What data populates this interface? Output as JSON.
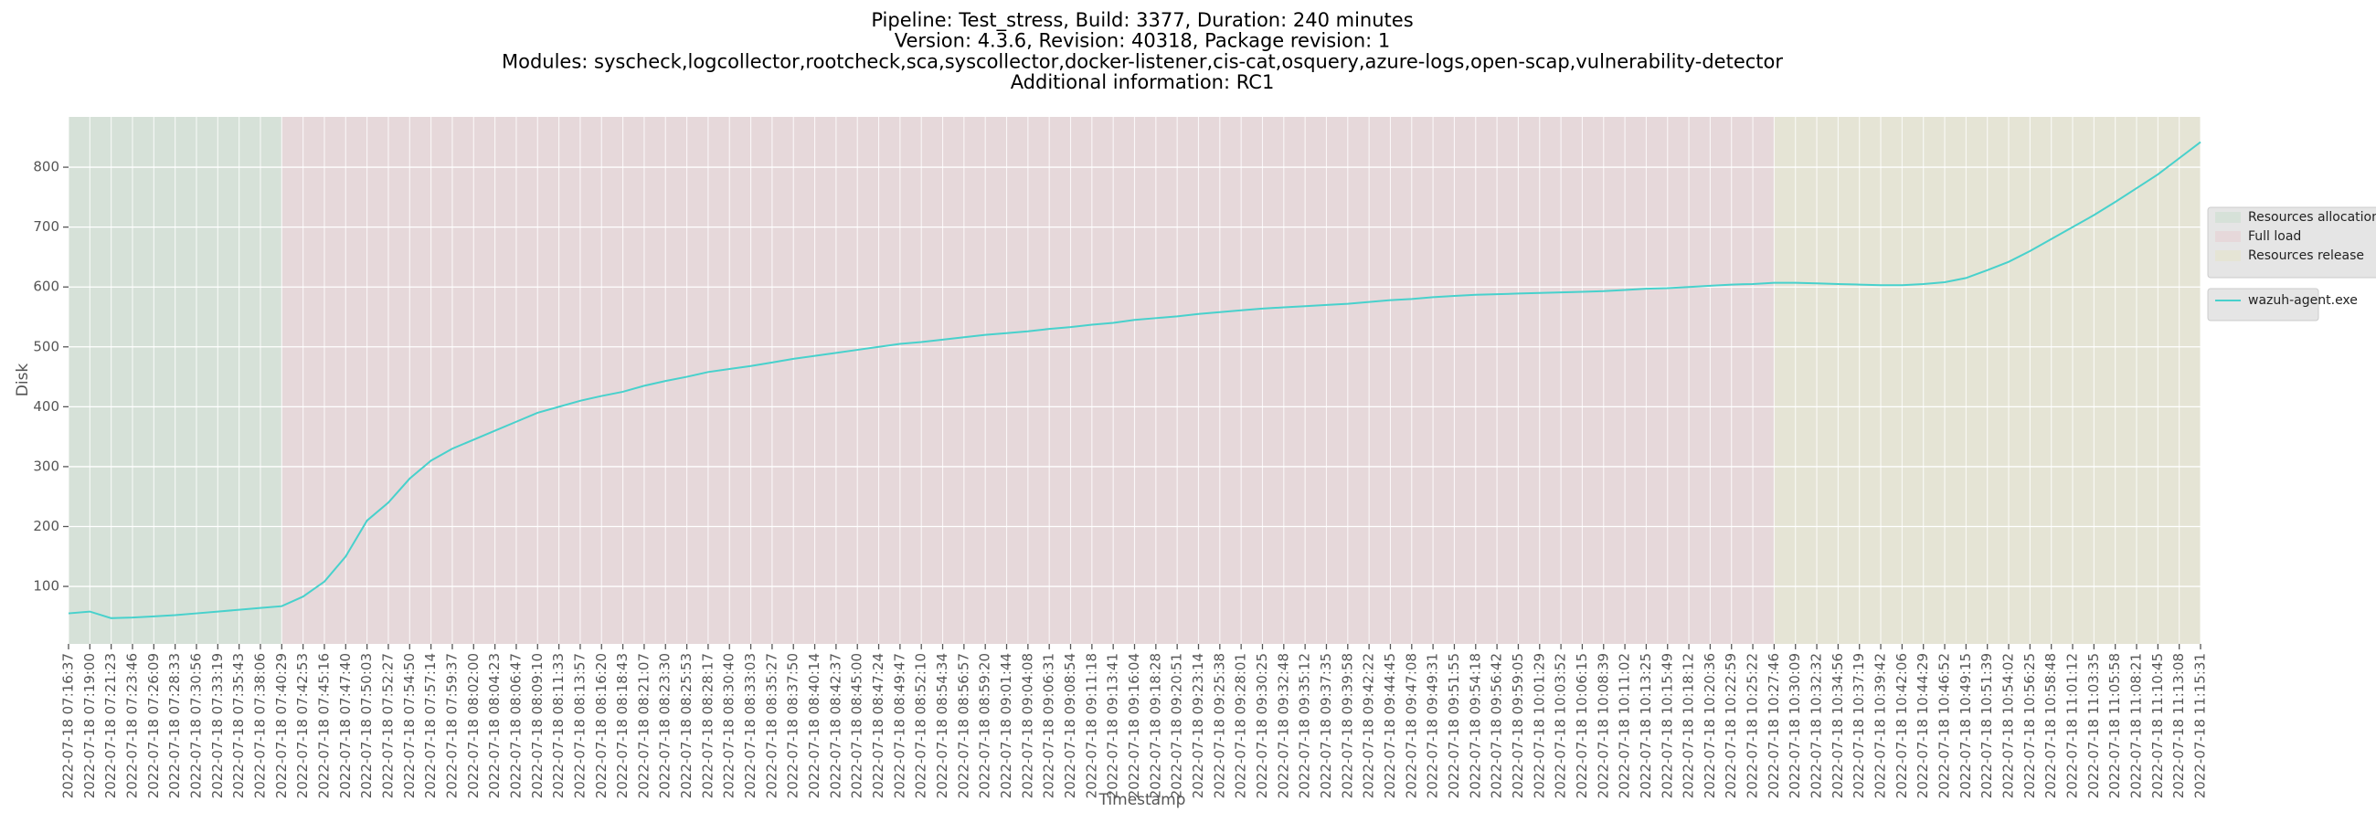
{
  "chart_data": {
    "type": "line",
    "title": [
      "Pipeline: Test_stress, Build: 3377, Duration: 240 minutes",
      "Version: 4.3.6, Revision: 40318, Package revision: 1",
      "Modules: syscheck,logcollector,rootcheck,sca,syscollector,docker-listener,cis-cat,osquery,azure-logs,open-scap,vulnerability-detector",
      "Additional information: RC1"
    ],
    "xlabel": "Timestamp",
    "ylabel": "Disk",
    "categories": [
      "2022-07-18 07:16:37",
      "2022-07-18 07:19:00",
      "2022-07-18 07:21:23",
      "2022-07-18 07:23:46",
      "2022-07-18 07:26:09",
      "2022-07-18 07:28:33",
      "2022-07-18 07:30:56",
      "2022-07-18 07:33:19",
      "2022-07-18 07:35:43",
      "2022-07-18 07:38:06",
      "2022-07-18 07:40:29",
      "2022-07-18 07:42:53",
      "2022-07-18 07:45:16",
      "2022-07-18 07:47:40",
      "2022-07-18 07:50:03",
      "2022-07-18 07:52:27",
      "2022-07-18 07:54:50",
      "2022-07-18 07:57:14",
      "2022-07-18 07:59:37",
      "2022-07-18 08:02:00",
      "2022-07-18 08:04:23",
      "2022-07-18 08:06:47",
      "2022-07-18 08:09:10",
      "2022-07-18 08:11:33",
      "2022-07-18 08:13:57",
      "2022-07-18 08:16:20",
      "2022-07-18 08:18:43",
      "2022-07-18 08:21:07",
      "2022-07-18 08:23:30",
      "2022-07-18 08:25:53",
      "2022-07-18 08:28:17",
      "2022-07-18 08:30:40",
      "2022-07-18 08:33:03",
      "2022-07-18 08:35:27",
      "2022-07-18 08:37:50",
      "2022-07-18 08:40:14",
      "2022-07-18 08:42:37",
      "2022-07-18 08:45:00",
      "2022-07-18 08:47:24",
      "2022-07-18 08:49:47",
      "2022-07-18 08:52:10",
      "2022-07-18 08:54:34",
      "2022-07-18 08:56:57",
      "2022-07-18 08:59:20",
      "2022-07-18 09:01:44",
      "2022-07-18 09:04:08",
      "2022-07-18 09:06:31",
      "2022-07-18 09:08:54",
      "2022-07-18 09:11:18",
      "2022-07-18 09:13:41",
      "2022-07-18 09:16:04",
      "2022-07-18 09:18:28",
      "2022-07-18 09:20:51",
      "2022-07-18 09:23:14",
      "2022-07-18 09:25:38",
      "2022-07-18 09:28:01",
      "2022-07-18 09:30:25",
      "2022-07-18 09:32:48",
      "2022-07-18 09:35:12",
      "2022-07-18 09:37:35",
      "2022-07-18 09:39:58",
      "2022-07-18 09:42:22",
      "2022-07-18 09:44:45",
      "2022-07-18 09:47:08",
      "2022-07-18 09:49:31",
      "2022-07-18 09:51:55",
      "2022-07-18 09:54:18",
      "2022-07-18 09:56:42",
      "2022-07-18 09:59:05",
      "2022-07-18 10:01:29",
      "2022-07-18 10:03:52",
      "2022-07-18 10:06:15",
      "2022-07-18 10:08:39",
      "2022-07-18 10:11:02",
      "2022-07-18 10:13:25",
      "2022-07-18 10:15:49",
      "2022-07-18 10:18:12",
      "2022-07-18 10:20:36",
      "2022-07-18 10:22:59",
      "2022-07-18 10:25:22",
      "2022-07-18 10:27:46",
      "2022-07-18 10:30:09",
      "2022-07-18 10:32:32",
      "2022-07-18 10:34:56",
      "2022-07-18 10:37:19",
      "2022-07-18 10:39:42",
      "2022-07-18 10:42:06",
      "2022-07-18 10:44:29",
      "2022-07-18 10:46:52",
      "2022-07-18 10:49:15",
      "2022-07-18 10:51:39",
      "2022-07-18 10:54:02",
      "2022-07-18 10:56:25",
      "2022-07-18 10:58:48",
      "2022-07-18 11:01:12",
      "2022-07-18 11:03:35",
      "2022-07-18 11:05:58",
      "2022-07-18 11:08:21",
      "2022-07-18 11:10:45",
      "2022-07-18 11:13:08",
      "2022-07-18 11:15:31"
    ],
    "series": [
      {
        "name": "wazuh-agent.exe",
        "color": "#48d1cc",
        "values": [
          55,
          58,
          47,
          48,
          50,
          52,
          55,
          58,
          61,
          64,
          67,
          83,
          108,
          150,
          210,
          240,
          280,
          310,
          330,
          345,
          360,
          375,
          390,
          400,
          410,
          418,
          425,
          435,
          443,
          450,
          458,
          463,
          468,
          474,
          480,
          485,
          490,
          495,
          500,
          505,
          508,
          512,
          516,
          520,
          523,
          526,
          530,
          533,
          537,
          540,
          545,
          548,
          551,
          555,
          558,
          561,
          564,
          566,
          568,
          570,
          572,
          575,
          578,
          580,
          583,
          585,
          587,
          588,
          589,
          590,
          591,
          592,
          593,
          595,
          597,
          598,
          600,
          602,
          604,
          605,
          607,
          607,
          606,
          605,
          604,
          603,
          603,
          605,
          608,
          615,
          628,
          642,
          660,
          680,
          700,
          720,
          742,
          765,
          788,
          815,
          842
        ]
      }
    ],
    "spans": [
      {
        "name": "Resources allocation",
        "color": "#d6e1d8",
        "start": "2022-07-18 07:16:37",
        "end": "2022-07-18 07:40:29"
      },
      {
        "name": "Full load",
        "color": "#e6d8da",
        "start": "2022-07-18 07:40:29",
        "end": "2022-07-18 10:27:46"
      },
      {
        "name": "Resources release",
        "color": "#e5e4d5",
        "start": "2022-07-18 10:27:46",
        "end": "2022-07-18 11:15:31"
      }
    ],
    "ylim": [
      4,
      884
    ],
    "yticks": [
      100,
      200,
      300,
      400,
      500,
      600,
      700,
      800
    ],
    "grid": true,
    "legend": "right"
  }
}
